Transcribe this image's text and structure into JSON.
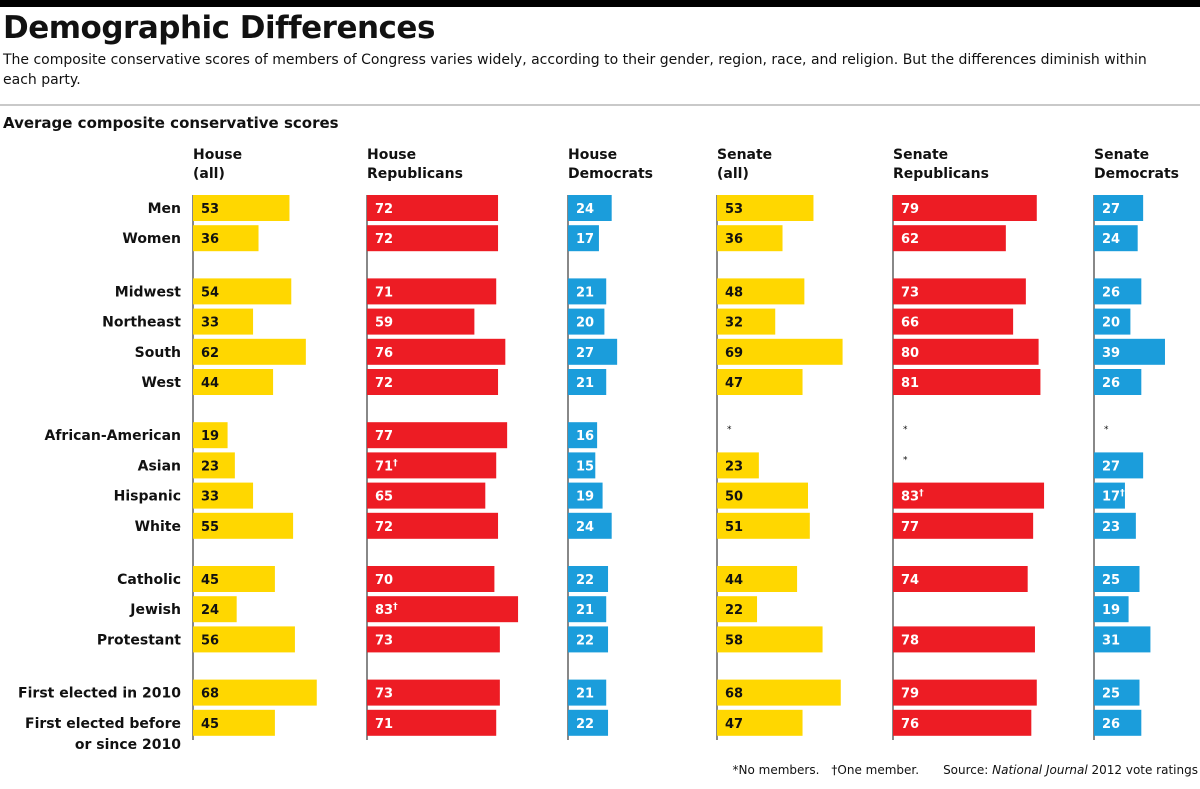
{
  "title": "Demographic Differences",
  "subtitle": "The composite conservative scores of members of Congress varies widely, according to their gender, region, race, and religion. But the differences diminish within each party.",
  "section_label": "Average composite conservative scores",
  "footer": {
    "no_members": "*No members.",
    "one_member": "†One member.",
    "source_prefix": "Source: ",
    "source_italic": "National Journal",
    "source_suffix": " 2012 vote ratings"
  },
  "chart_data": {
    "type": "bar",
    "orientation": "horizontal",
    "title": "Average composite conservative scores",
    "categories": [
      "Men",
      "Women",
      "Midwest",
      "Northeast",
      "South",
      "West",
      "African-American",
      "Asian",
      "Hispanic",
      "White",
      "Catholic",
      "Jewish",
      "Protestant",
      "First elected in 2010",
      "First elected before or since 2010"
    ],
    "groups": [
      2,
      4,
      4,
      3,
      2
    ],
    "series": [
      {
        "name": "House (all)",
        "color": "#FFD700",
        "text_color": "#111111",
        "values": [
          53,
          36,
          54,
          33,
          62,
          44,
          19,
          23,
          33,
          55,
          45,
          24,
          56,
          68,
          45
        ],
        "labels": [
          "53",
          "36",
          "54",
          "33",
          "62",
          "44",
          "19",
          "23",
          "33",
          "55",
          "45",
          "24",
          "56",
          "68",
          "45"
        ]
      },
      {
        "name": "House Republicans",
        "color": "#ED1C24",
        "text_color": "#ffffff",
        "values": [
          72,
          72,
          71,
          59,
          76,
          72,
          77,
          71,
          65,
          72,
          70,
          83,
          73,
          73,
          71
        ],
        "labels": [
          "72",
          "72",
          "71",
          "59",
          "76",
          "72",
          "77",
          "71†",
          "65",
          "72",
          "70",
          "83†",
          "73",
          "73",
          "71"
        ]
      },
      {
        "name": "House Democrats",
        "color": "#1B9DDB",
        "text_color": "#ffffff",
        "values": [
          24,
          17,
          21,
          20,
          27,
          21,
          16,
          15,
          19,
          24,
          22,
          21,
          22,
          21,
          22
        ],
        "labels": [
          "24",
          "17",
          "21",
          "20",
          "27",
          "21",
          "16",
          "15",
          "19",
          "24",
          "22",
          "21",
          "22",
          "21",
          "22"
        ]
      },
      {
        "name": "Senate (all)",
        "color": "#FFD700",
        "text_color": "#111111",
        "values": [
          53,
          36,
          48,
          32,
          69,
          47,
          null,
          23,
          50,
          51,
          44,
          22,
          58,
          68,
          47
        ],
        "labels": [
          "53",
          "36",
          "48",
          "32",
          "69",
          "47",
          "*",
          "23",
          "50",
          "51",
          "44",
          "22",
          "58",
          "68",
          "47"
        ]
      },
      {
        "name": "Senate Republicans",
        "color": "#ED1C24",
        "text_color": "#ffffff",
        "values": [
          79,
          62,
          73,
          66,
          80,
          81,
          null,
          null,
          83,
          77,
          74,
          null,
          78,
          79,
          76
        ],
        "labels": [
          "79",
          "62",
          "73",
          "66",
          "80",
          "81",
          "*",
          "*",
          "83†",
          "77",
          "74",
          "",
          "78",
          "79",
          "76"
        ]
      },
      {
        "name": "Senate Democrats",
        "color": "#1B9DDB",
        "text_color": "#ffffff",
        "values": [
          27,
          24,
          26,
          20,
          39,
          26,
          null,
          27,
          17,
          23,
          25,
          19,
          31,
          25,
          26
        ],
        "labels": [
          "27",
          "24",
          "26",
          "20",
          "39",
          "26",
          "*",
          "27",
          "17†",
          "23",
          "25",
          "19",
          "31",
          "25",
          "26"
        ]
      }
    ],
    "column_headers": [
      [
        "House",
        "(all)"
      ],
      [
        "House",
        "Republicans"
      ],
      [
        "House",
        "Democrats"
      ],
      [
        "Senate",
        "(all)"
      ],
      [
        "Senate",
        "Republicans"
      ],
      [
        "Senate",
        "Democrats"
      ]
    ],
    "row_labels": [
      [
        "Men"
      ],
      [
        "Women"
      ],
      [
        "Midwest"
      ],
      [
        "Northeast"
      ],
      [
        "South"
      ],
      [
        "West"
      ],
      [
        "African-American"
      ],
      [
        "Asian"
      ],
      [
        "Hispanic"
      ],
      [
        "White"
      ],
      [
        "Catholic"
      ],
      [
        "Jewish"
      ],
      [
        "Protestant"
      ],
      [
        "First elected in 2010"
      ],
      [
        "First elected before",
        "or since 2010"
      ]
    ],
    "legend": "none",
    "grid": false
  }
}
